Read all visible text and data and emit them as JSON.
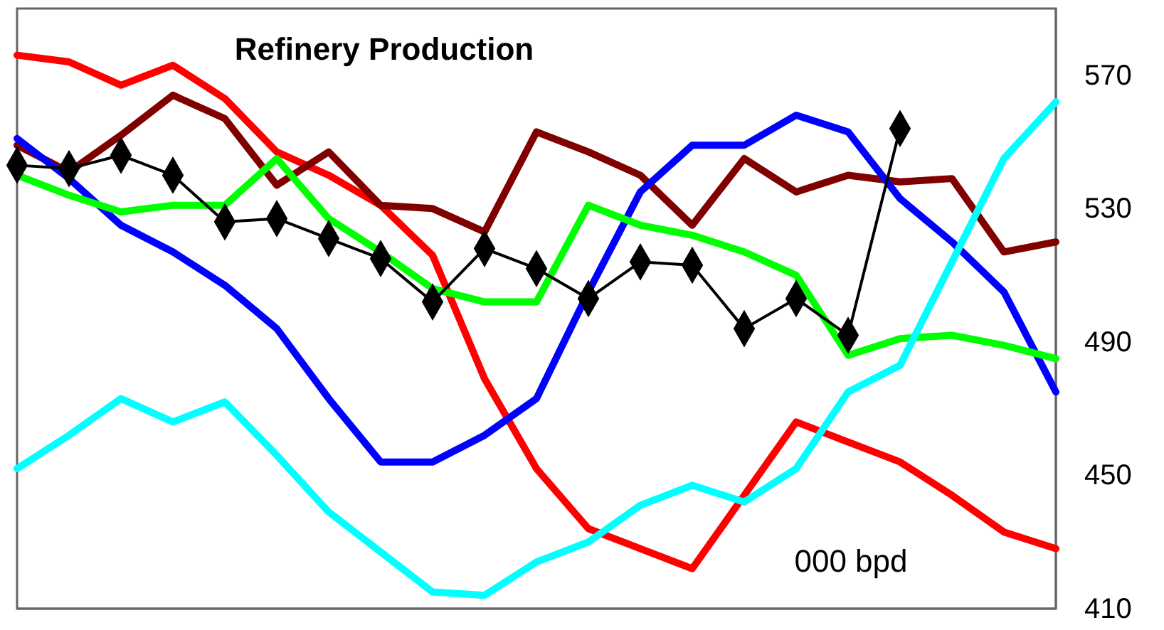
{
  "chart_data": {
    "type": "line",
    "title": "Refinery Production",
    "annotations": [
      "000 bpd"
    ],
    "categories": [
      null,
      null,
      null,
      null,
      null,
      null,
      null,
      null,
      null,
      null,
      null,
      null,
      null,
      null,
      null,
      null,
      null,
      null,
      null,
      null,
      null
    ],
    "ylim": [
      410,
      590
    ],
    "yticks": [
      410,
      450,
      490,
      530,
      570
    ],
    "tick_labels": "y",
    "series": [
      {
        "color": "#ff0000",
        "marker": "none",
        "values": [
          576,
          574,
          567,
          573,
          563,
          547,
          540,
          531,
          516,
          479,
          452,
          434,
          428,
          422,
          444,
          466,
          460,
          454,
          444,
          433,
          428
        ]
      },
      {
        "color": "#800000",
        "marker": "none",
        "values": [
          549,
          541,
          552,
          564,
          557,
          537,
          547,
          531,
          530,
          523,
          553,
          547,
          540,
          525,
          545,
          535,
          540,
          538,
          539,
          517,
          520
        ]
      },
      {
        "color": "#0000ff",
        "marker": "none",
        "values": [
          551,
          539,
          525,
          517,
          507,
          494,
          473,
          454,
          454,
          462,
          473,
          505,
          535,
          549,
          549,
          558,
          553,
          533,
          520,
          505,
          475
        ]
      },
      {
        "color": "#00ff00",
        "marker": "none",
        "values": [
          540,
          534,
          529,
          531,
          531,
          545,
          527,
          517,
          506,
          502,
          502,
          531,
          525,
          522,
          517,
          510,
          486,
          491,
          492,
          489,
          485
        ]
      },
      {
        "color": "#00ffff",
        "marker": "none",
        "values": [
          452,
          462,
          473,
          466,
          472,
          456,
          439,
          427,
          415,
          414,
          424,
          430,
          441,
          447,
          442,
          452,
          475,
          483,
          514,
          545,
          562
        ]
      },
      {
        "color": "#000000",
        "marker": "diamond",
        "values": [
          543,
          542,
          546,
          540,
          526,
          527,
          521,
          515,
          502,
          518,
          512,
          503,
          514,
          513,
          494,
          503,
          492,
          554,
          null,
          null,
          null
        ]
      }
    ]
  }
}
